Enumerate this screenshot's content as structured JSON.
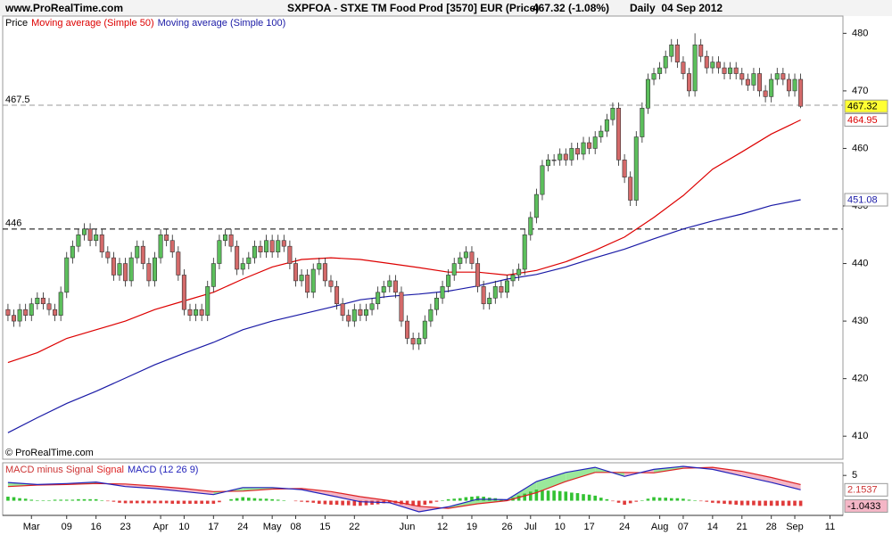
{
  "header": {
    "site": "www.ProRealTime.com",
    "title": "SXPFOA - STXE TM Food Prod [3570] EUR (Price)",
    "last": "467.32 (-1.08%)",
    "period": "Daily  04 Sep 2012"
  },
  "footer": "© ProRealTime.com",
  "chart_data": [
    {
      "type": "candlestick",
      "xlim": [
        -0.9,
        142.2
      ],
      "xticks": [
        {
          "value": 4,
          "label": "Mar"
        },
        {
          "value": 10,
          "label": "09"
        },
        {
          "value": 15,
          "label": "16"
        },
        {
          "value": 20,
          "label": "23"
        },
        {
          "value": 26,
          "label": "Apr"
        },
        {
          "value": 30,
          "label": "10"
        },
        {
          "value": 35,
          "label": "17"
        },
        {
          "value": 40,
          "label": "24"
        },
        {
          "value": 45,
          "label": "May"
        },
        {
          "value": 49,
          "label": "08"
        },
        {
          "value": 54,
          "label": "15"
        },
        {
          "value": 59,
          "label": "22"
        },
        {
          "value": 68,
          "label": "Jun"
        },
        {
          "value": 74,
          "label": "12"
        },
        {
          "value": 79,
          "label": "19"
        },
        {
          "value": 85,
          "label": "26"
        },
        {
          "value": 89,
          "label": "Jul"
        },
        {
          "value": 94,
          "label": "10"
        },
        {
          "value": 99,
          "label": "17"
        },
        {
          "value": 105,
          "label": "24"
        },
        {
          "value": 111,
          "label": "Aug"
        },
        {
          "value": 115,
          "label": "07"
        },
        {
          "value": 120,
          "label": "14"
        },
        {
          "value": 125,
          "label": "21"
        },
        {
          "value": 130,
          "label": "28"
        },
        {
          "value": 134,
          "label": "Sep"
        },
        {
          "value": 140,
          "label": "11"
        }
      ],
      "ylim": [
        406,
        483
      ],
      "yticks": [
        410,
        420,
        430,
        440,
        450,
        460,
        470,
        480
      ],
      "reference_lines": [
        {
          "value": 467.5,
          "color": "#999999"
        },
        {
          "value": 446,
          "color": "#000000"
        }
      ],
      "series": [
        {
          "name": "Price",
          "type": "candlestick",
          "up_color": "#5cbf5c",
          "down_color": "#d46a6a",
          "flat_color": "#888888",
          "tag_color": "#ffff33",
          "open": [
            432,
            431,
            430,
            432,
            431,
            433,
            434,
            433,
            432,
            431,
            435,
            441,
            443,
            445,
            446,
            444,
            445,
            442,
            441,
            438,
            440,
            437,
            441,
            443,
            440,
            437,
            441,
            445,
            444,
            442,
            438,
            432,
            431,
            432,
            431,
            436,
            440,
            444,
            445,
            443,
            439,
            440,
            441,
            443,
            442,
            444,
            442,
            444,
            443,
            440,
            437,
            438,
            435,
            439,
            440,
            437,
            436,
            433,
            431,
            430,
            432,
            431,
            432,
            433,
            435,
            436,
            437,
            435,
            430,
            427,
            426,
            427,
            430,
            432,
            434,
            436,
            438,
            440,
            441,
            442,
            440,
            436,
            433,
            434,
            436,
            435,
            437,
            438,
            439,
            445,
            448,
            452,
            457,
            458,
            458,
            459,
            458,
            460,
            459,
            461,
            460,
            462,
            463,
            465,
            467,
            458,
            455,
            451,
            462,
            467,
            472,
            473,
            474,
            476,
            478,
            475,
            473,
            470,
            478,
            476,
            474,
            475,
            474,
            473,
            474,
            473,
            472,
            471,
            473,
            470,
            469,
            472,
            473,
            472,
            470,
            472
          ],
          "high": [
            433,
            432,
            433,
            433,
            434,
            435,
            435,
            434,
            433,
            436,
            442,
            444,
            446,
            447,
            447,
            446,
            446,
            443,
            442,
            441,
            441,
            442,
            444,
            444,
            441,
            442,
            446,
            446,
            445,
            443,
            439,
            433,
            433,
            433,
            437,
            441,
            445,
            446,
            446,
            444,
            441,
            442,
            444,
            444,
            445,
            445,
            445,
            445,
            444,
            441,
            439,
            439,
            440,
            441,
            441,
            438,
            437,
            434,
            432,
            433,
            433,
            433,
            434,
            436,
            437,
            438,
            438,
            436,
            431,
            428,
            428,
            431,
            433,
            435,
            437,
            439,
            441,
            442,
            443,
            443,
            441,
            437,
            435,
            437,
            437,
            438,
            439,
            440,
            446,
            449,
            453,
            458,
            459,
            459,
            460,
            460,
            461,
            461,
            462,
            462,
            463,
            464,
            466,
            468,
            468,
            459,
            456,
            463,
            468,
            473,
            474,
            475,
            477,
            479,
            479,
            476,
            474,
            480,
            479,
            477,
            476,
            476,
            475,
            475,
            475,
            474,
            473,
            474,
            474,
            471,
            473,
            474,
            474,
            473,
            473,
            473
          ],
          "low": [
            430,
            429,
            429,
            430,
            430,
            432,
            432,
            431,
            430,
            430,
            434,
            440,
            442,
            444,
            443,
            443,
            441,
            440,
            437,
            437,
            436,
            436,
            440,
            439,
            436,
            436,
            440,
            443,
            441,
            437,
            431,
            430,
            430,
            430,
            430,
            435,
            439,
            443,
            442,
            438,
            438,
            439,
            440,
            441,
            441,
            441,
            441,
            442,
            439,
            436,
            436,
            434,
            434,
            438,
            436,
            435,
            432,
            430,
            429,
            429,
            430,
            430,
            431,
            432,
            434,
            435,
            434,
            429,
            426,
            425,
            425,
            426,
            429,
            431,
            433,
            435,
            437,
            439,
            440,
            439,
            435,
            432,
            432,
            433,
            434,
            434,
            436,
            437,
            438,
            444,
            447,
            451,
            456,
            457,
            457,
            457,
            457,
            458,
            458,
            459,
            459,
            461,
            462,
            464,
            457,
            454,
            450,
            450,
            461,
            466,
            471,
            472,
            473,
            475,
            474,
            472,
            469,
            469,
            475,
            473,
            473,
            473,
            472,
            472,
            472,
            471,
            470,
            470,
            469,
            468,
            468,
            471,
            471,
            469,
            469,
            467
          ],
          "close": [
            431,
            430,
            432,
            431,
            433,
            434,
            433,
            432,
            431,
            435,
            441,
            443,
            445,
            446,
            444,
            445,
            442,
            441,
            438,
            440,
            437,
            441,
            443,
            440,
            437,
            441,
            445,
            444,
            442,
            438,
            432,
            431,
            432,
            431,
            436,
            440,
            444,
            445,
            443,
            439,
            440,
            441,
            443,
            442,
            444,
            442,
            444,
            443,
            440,
            437,
            438,
            435,
            439,
            440,
            437,
            436,
            433,
            431,
            430,
            432,
            431,
            432,
            433,
            435,
            436,
            437,
            435,
            430,
            427,
            426,
            427,
            430,
            432,
            434,
            436,
            438,
            440,
            441,
            442,
            440,
            436,
            433,
            434,
            436,
            435,
            437,
            438,
            439,
            445,
            448,
            452,
            457,
            458,
            458,
            459,
            458,
            460,
            459,
            461,
            460,
            462,
            463,
            465,
            467,
            458,
            455,
            451,
            462,
            467,
            472,
            473,
            474,
            476,
            478,
            475,
            473,
            470,
            478,
            476,
            474,
            475,
            474,
            473,
            474,
            473,
            472,
            471,
            473,
            470,
            469,
            472,
            473,
            472,
            470,
            472,
            467.32
          ]
        },
        {
          "name": "Moving average (Simple 50)",
          "type": "line",
          "color": "#dd0000",
          "x": [
            0,
            5,
            10,
            15,
            20,
            25,
            30,
            35,
            40,
            45,
            50,
            55,
            60,
            65,
            70,
            75,
            80,
            85,
            90,
            95,
            100,
            105,
            110,
            115,
            120,
            125,
            130,
            135
          ],
          "values": [
            422.8,
            424.5,
            427,
            428.5,
            430,
            432,
            433.5,
            435,
            437.3,
            439.4,
            440.7,
            441,
            440.7,
            440,
            439.3,
            438.5,
            438.5,
            438,
            438.8,
            440.3,
            442.3,
            444.6,
            448,
            451.8,
            456.4,
            459.4,
            462.5,
            464.95
          ]
        },
        {
          "name": "Moving average (Simple 100)",
          "type": "line",
          "color": "#1a1aa6",
          "x": [
            0,
            5,
            10,
            15,
            20,
            25,
            30,
            35,
            40,
            45,
            50,
            55,
            60,
            65,
            70,
            75,
            80,
            85,
            90,
            95,
            100,
            105,
            110,
            115,
            120,
            125,
            130,
            135
          ],
          "values": [
            410.6,
            413.2,
            415.7,
            417.8,
            420.1,
            422.4,
            424.4,
            426.3,
            428.5,
            430,
            431.2,
            432.4,
            433.7,
            434.3,
            434.7,
            435.2,
            436.1,
            437.3,
            438.1,
            439.4,
            441,
            442.5,
            444.3,
            446,
            447.4,
            448.6,
            450.1,
            451.08
          ]
        }
      ]
    },
    {
      "type": "macd",
      "ylim": [
        -2.9,
        7.5
      ],
      "yticks": [
        5
      ],
      "fill_up": "#9be89b",
      "fill_down": "#f4b6c6",
      "series": [
        {
          "name": "MACD minus Signal",
          "type": "histogram",
          "color": "#cc3333",
          "up_color": "#33c233",
          "down_color": "#e03a3a",
          "values": [
            0.8,
            0.7,
            0.5,
            0.4,
            0.2,
            0.1,
            0.1,
            0.1,
            0.2,
            0.2,
            0.2,
            0.2,
            0.3,
            0.3,
            0.3,
            0.3,
            0.1,
            -0.1,
            -0.2,
            -0.4,
            -0.5,
            -0.5,
            -0.5,
            -0.5,
            -0.5,
            -0.5,
            -0.5,
            -0.5,
            -0.6,
            -0.6,
            -0.6,
            -0.6,
            -0.6,
            -0.6,
            -0.6,
            -0.6,
            -0.3,
            0,
            0.3,
            0.5,
            0.7,
            0.6,
            0.5,
            0.4,
            0.4,
            0.3,
            0.2,
            0.1,
            0,
            -0.1,
            -0.2,
            -0.3,
            -0.4,
            -0.6,
            -0.7,
            -0.8,
            -0.8,
            -0.9,
            -0.9,
            -1.0,
            -1.0,
            -0.9,
            -0.8,
            -0.7,
            -0.5,
            -0.4,
            -0.5,
            -0.7,
            -0.8,
            -1.0,
            -1.1,
            -0.8,
            -0.5,
            -0.2,
            0.1,
            0.3,
            0.4,
            0.5,
            0.7,
            0.8,
            0.9,
            0.8,
            0.6,
            0.5,
            0.3,
            0.2,
            0.6,
            1.0,
            1.4,
            1.8,
            2.2,
            2.1,
            2.0,
            2.0,
            1.9,
            1.8,
            1.6,
            1.5,
            1.3,
            1.2,
            1.0,
            0.6,
            0.3,
            -0.1,
            -0.4,
            -0.8,
            -0.5,
            -0.2,
            0.1,
            0.4,
            0.7,
            0.6,
            0.6,
            0.5,
            0.5,
            0.4,
            0.2,
            0.1,
            -0.1,
            -0.2,
            -0.4,
            -0.5,
            -0.6,
            -0.7,
            -0.8,
            -0.9,
            -0.9,
            -0.9,
            -1.0,
            -1.0,
            -1.0,
            -1.0,
            -1.0,
            -1.0,
            -1.0,
            -1.0433
          ]
        },
        {
          "name": "Signal",
          "type": "line",
          "color": "#dd2222",
          "x": [
            0,
            5,
            10,
            15,
            20,
            25,
            30,
            35,
            40,
            45,
            50,
            55,
            60,
            65,
            70,
            75,
            80,
            85,
            90,
            95,
            100,
            105,
            110,
            115,
            120,
            125,
            130,
            135
          ],
          "values": [
            2.8,
            3.1,
            3.2,
            3.4,
            3.3,
            2.9,
            2.4,
            1.8,
            1.9,
            2.3,
            2.4,
            1.8,
            0.8,
            0,
            -1.1,
            -1.5,
            -0.6,
            0,
            1.6,
            3.8,
            5.6,
            5.6,
            5.5,
            6.4,
            6.6,
            5.8,
            4.6,
            3.197
          ]
        },
        {
          "name": "MACD (12 26 9)",
          "type": "line",
          "color": "#2222bb",
          "x": [
            0,
            5,
            10,
            15,
            20,
            25,
            30,
            35,
            40,
            45,
            50,
            55,
            60,
            65,
            70,
            75,
            80,
            85,
            90,
            95,
            100,
            105,
            110,
            115,
            120,
            125,
            130,
            135
          ],
          "values": [
            3.6,
            3.2,
            3.4,
            3.7,
            2.8,
            2.4,
            1.8,
            1.2,
            2.6,
            2.6,
            2.2,
            1.0,
            -0.2,
            -0.4,
            -2.2,
            -1.2,
            0.3,
            0.2,
            3.8,
            5.6,
            6.6,
            4.8,
            6.2,
            6.8,
            6.2,
            4.9,
            3.6,
            2.1537
          ]
        }
      ]
    }
  ]
}
